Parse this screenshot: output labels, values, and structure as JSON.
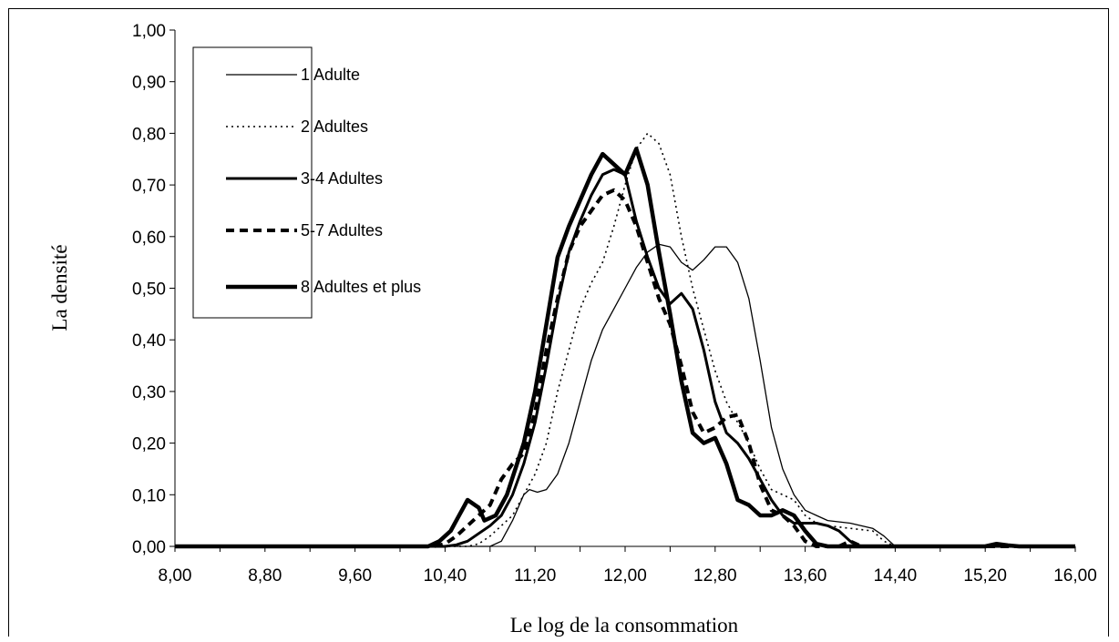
{
  "chart_data": {
    "type": "line",
    "xlabel": "Le log de la consommation",
    "ylabel": "La densité",
    "xlim": [
      8.0,
      16.0
    ],
    "ylim": [
      0.0,
      1.0
    ],
    "x_ticks": [
      "8,00",
      "8,80",
      "9,60",
      "10,40",
      "11,20",
      "12,00",
      "12,80",
      "13,60",
      "14,40",
      "15,20",
      "16,00"
    ],
    "y_ticks": [
      "0,00",
      "0,10",
      "0,20",
      "0,30",
      "0,40",
      "0,50",
      "0,60",
      "0,70",
      "0,80",
      "0,90",
      "1,00"
    ],
    "grid": false,
    "legend_position": "top-left",
    "series": [
      {
        "name": "1 Adulte",
        "style": "thin-solid",
        "points": [
          [
            8.0,
            0
          ],
          [
            10.8,
            0
          ],
          [
            10.9,
            0.01
          ],
          [
            11.0,
            0.05
          ],
          [
            11.1,
            0.1
          ],
          [
            11.15,
            0.11
          ],
          [
            11.22,
            0.105
          ],
          [
            11.3,
            0.11
          ],
          [
            11.4,
            0.14
          ],
          [
            11.5,
            0.2
          ],
          [
            11.6,
            0.28
          ],
          [
            11.7,
            0.36
          ],
          [
            11.8,
            0.42
          ],
          [
            11.9,
            0.46
          ],
          [
            12.0,
            0.5
          ],
          [
            12.1,
            0.54
          ],
          [
            12.2,
            0.57
          ],
          [
            12.3,
            0.585
          ],
          [
            12.4,
            0.58
          ],
          [
            12.5,
            0.55
          ],
          [
            12.6,
            0.535
          ],
          [
            12.7,
            0.555
          ],
          [
            12.8,
            0.58
          ],
          [
            12.9,
            0.58
          ],
          [
            13.0,
            0.55
          ],
          [
            13.1,
            0.48
          ],
          [
            13.2,
            0.36
          ],
          [
            13.3,
            0.23
          ],
          [
            13.4,
            0.15
          ],
          [
            13.5,
            0.1
          ],
          [
            13.6,
            0.07
          ],
          [
            13.7,
            0.06
          ],
          [
            13.8,
            0.05
          ],
          [
            14.0,
            0.045
          ],
          [
            14.2,
            0.035
          ],
          [
            14.3,
            0.02
          ],
          [
            14.4,
            0
          ],
          [
            16.0,
            0
          ]
        ]
      },
      {
        "name": "2 Adultes",
        "style": "dotted",
        "points": [
          [
            8.0,
            0
          ],
          [
            10.6,
            0
          ],
          [
            10.7,
            0.005
          ],
          [
            10.8,
            0.02
          ],
          [
            10.9,
            0.04
          ],
          [
            11.0,
            0.06
          ],
          [
            11.1,
            0.1
          ],
          [
            11.2,
            0.14
          ],
          [
            11.3,
            0.2
          ],
          [
            11.4,
            0.3
          ],
          [
            11.5,
            0.38
          ],
          [
            11.6,
            0.46
          ],
          [
            11.7,
            0.51
          ],
          [
            11.8,
            0.55
          ],
          [
            11.9,
            0.62
          ],
          [
            12.0,
            0.7
          ],
          [
            12.1,
            0.77
          ],
          [
            12.2,
            0.8
          ],
          [
            12.3,
            0.78
          ],
          [
            12.4,
            0.72
          ],
          [
            12.5,
            0.6
          ],
          [
            12.6,
            0.5
          ],
          [
            12.7,
            0.42
          ],
          [
            12.8,
            0.34
          ],
          [
            12.9,
            0.28
          ],
          [
            13.0,
            0.24
          ],
          [
            13.1,
            0.2
          ],
          [
            13.2,
            0.15
          ],
          [
            13.3,
            0.11
          ],
          [
            13.4,
            0.1
          ],
          [
            13.5,
            0.09
          ],
          [
            13.6,
            0.06
          ],
          [
            13.7,
            0.045
          ],
          [
            13.8,
            0.04
          ],
          [
            14.0,
            0.035
          ],
          [
            14.2,
            0.03
          ],
          [
            14.3,
            0.01
          ],
          [
            14.4,
            0
          ],
          [
            16.0,
            0
          ]
        ]
      },
      {
        "name": "3-4 Adultes",
        "style": "medium-solid",
        "points": [
          [
            8.0,
            0
          ],
          [
            10.4,
            0
          ],
          [
            10.5,
            0.003
          ],
          [
            10.6,
            0.01
          ],
          [
            10.7,
            0.025
          ],
          [
            10.8,
            0.04
          ],
          [
            10.9,
            0.06
          ],
          [
            11.0,
            0.1
          ],
          [
            11.1,
            0.16
          ],
          [
            11.2,
            0.24
          ],
          [
            11.3,
            0.35
          ],
          [
            11.4,
            0.47
          ],
          [
            11.5,
            0.57
          ],
          [
            11.6,
            0.63
          ],
          [
            11.7,
            0.68
          ],
          [
            11.8,
            0.72
          ],
          [
            11.9,
            0.73
          ],
          [
            12.0,
            0.72
          ],
          [
            12.1,
            0.63
          ],
          [
            12.2,
            0.56
          ],
          [
            12.3,
            0.5
          ],
          [
            12.4,
            0.47
          ],
          [
            12.5,
            0.49
          ],
          [
            12.6,
            0.46
          ],
          [
            12.7,
            0.38
          ],
          [
            12.8,
            0.28
          ],
          [
            12.9,
            0.22
          ],
          [
            13.0,
            0.2
          ],
          [
            13.1,
            0.17
          ],
          [
            13.2,
            0.13
          ],
          [
            13.3,
            0.09
          ],
          [
            13.4,
            0.06
          ],
          [
            13.5,
            0.045
          ],
          [
            13.6,
            0.045
          ],
          [
            13.7,
            0.045
          ],
          [
            13.8,
            0.04
          ],
          [
            13.9,
            0.03
          ],
          [
            14.0,
            0.01
          ],
          [
            14.1,
            0
          ],
          [
            16.0,
            0
          ]
        ]
      },
      {
        "name": "5-7 Adultes",
        "style": "dashed",
        "points": [
          [
            8.0,
            0
          ],
          [
            10.3,
            0
          ],
          [
            10.4,
            0.005
          ],
          [
            10.5,
            0.02
          ],
          [
            10.6,
            0.04
          ],
          [
            10.7,
            0.06
          ],
          [
            10.8,
            0.08
          ],
          [
            10.9,
            0.13
          ],
          [
            11.0,
            0.16
          ],
          [
            11.1,
            0.18
          ],
          [
            11.2,
            0.26
          ],
          [
            11.3,
            0.38
          ],
          [
            11.4,
            0.48
          ],
          [
            11.5,
            0.57
          ],
          [
            11.6,
            0.62
          ],
          [
            11.7,
            0.65
          ],
          [
            11.8,
            0.68
          ],
          [
            11.9,
            0.69
          ],
          [
            12.0,
            0.67
          ],
          [
            12.1,
            0.62
          ],
          [
            12.2,
            0.55
          ],
          [
            12.3,
            0.48
          ],
          [
            12.4,
            0.43
          ],
          [
            12.5,
            0.35
          ],
          [
            12.6,
            0.26
          ],
          [
            12.7,
            0.22
          ],
          [
            12.8,
            0.23
          ],
          [
            12.9,
            0.25
          ],
          [
            13.0,
            0.255
          ],
          [
            13.1,
            0.2
          ],
          [
            13.2,
            0.12
          ],
          [
            13.3,
            0.07
          ],
          [
            13.4,
            0.06
          ],
          [
            13.5,
            0.04
          ],
          [
            13.6,
            0.01
          ],
          [
            13.7,
            0
          ],
          [
            13.9,
            0
          ],
          [
            14.0,
            0.01
          ],
          [
            14.1,
            0
          ],
          [
            16.0,
            0
          ]
        ]
      },
      {
        "name": "8 Adultes et plus",
        "style": "thick-solid",
        "points": [
          [
            8.0,
            0
          ],
          [
            10.25,
            0
          ],
          [
            10.35,
            0.01
          ],
          [
            10.45,
            0.03
          ],
          [
            10.5,
            0.05
          ],
          [
            10.6,
            0.09
          ],
          [
            10.7,
            0.075
          ],
          [
            10.75,
            0.05
          ],
          [
            10.85,
            0.06
          ],
          [
            10.95,
            0.1
          ],
          [
            11.1,
            0.2
          ],
          [
            11.2,
            0.3
          ],
          [
            11.3,
            0.43
          ],
          [
            11.4,
            0.56
          ],
          [
            11.5,
            0.62
          ],
          [
            11.6,
            0.67
          ],
          [
            11.7,
            0.72
          ],
          [
            11.8,
            0.76
          ],
          [
            11.9,
            0.74
          ],
          [
            12.0,
            0.72
          ],
          [
            12.1,
            0.77
          ],
          [
            12.2,
            0.7
          ],
          [
            12.3,
            0.57
          ],
          [
            12.4,
            0.45
          ],
          [
            12.5,
            0.32
          ],
          [
            12.6,
            0.22
          ],
          [
            12.7,
            0.2
          ],
          [
            12.8,
            0.21
          ],
          [
            12.9,
            0.16
          ],
          [
            13.0,
            0.09
          ],
          [
            13.1,
            0.08
          ],
          [
            13.2,
            0.06
          ],
          [
            13.3,
            0.06
          ],
          [
            13.4,
            0.07
          ],
          [
            13.5,
            0.06
          ],
          [
            13.6,
            0.03
          ],
          [
            13.7,
            0.005
          ],
          [
            13.8,
            0
          ],
          [
            15.2,
            0
          ],
          [
            15.3,
            0.005
          ],
          [
            15.4,
            0.002
          ],
          [
            15.5,
            0
          ],
          [
            16.0,
            0
          ]
        ]
      }
    ]
  }
}
